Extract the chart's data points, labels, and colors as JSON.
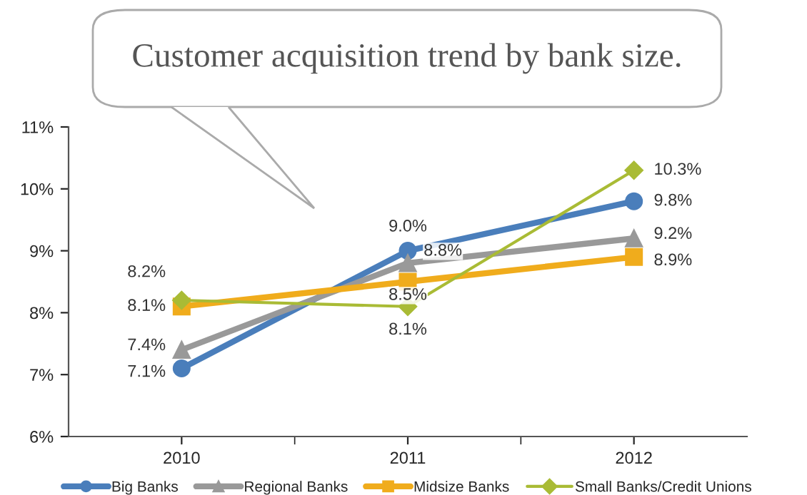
{
  "chart_data": {
    "type": "line",
    "title": "Customer acquisition trend by bank size.",
    "categories": [
      "2010",
      "2011",
      "2012"
    ],
    "series": [
      {
        "name": "Big Banks",
        "color": "#4a7ebb",
        "marker": "circle",
        "values": [
          7.1,
          9.0,
          9.8
        ],
        "value_labels": [
          "7.1%",
          "9.0%",
          "9.8%"
        ]
      },
      {
        "name": "Regional Banks",
        "color": "#999999",
        "marker": "triangle",
        "values": [
          7.4,
          8.8,
          9.2
        ],
        "value_labels": [
          "7.4%",
          "8.8%",
          "9.2%"
        ]
      },
      {
        "name": "Midsize Banks",
        "color": "#f0ac1c",
        "marker": "square",
        "values": [
          8.1,
          8.5,
          8.9
        ],
        "value_labels": [
          "8.1%",
          "8.5%",
          "8.9%"
        ]
      },
      {
        "name": "Small Banks/Credit Unions",
        "color": "#a9bb35",
        "marker": "diamond",
        "values": [
          8.2,
          8.1,
          10.3
        ],
        "value_labels": [
          "8.2%",
          "8.1%",
          "10.3%"
        ]
      }
    ],
    "ylim": [
      6,
      11
    ],
    "yticks": [
      {
        "value": 6,
        "label": "6%"
      },
      {
        "value": 7,
        "label": "7%"
      },
      {
        "value": 8,
        "label": "8%"
      },
      {
        "value": 9,
        "label": "9%"
      },
      {
        "value": 10,
        "label": "10%"
      },
      {
        "value": 11,
        "label": "11%"
      }
    ],
    "grid": false,
    "legend": "bottom",
    "line_style": "solid"
  }
}
